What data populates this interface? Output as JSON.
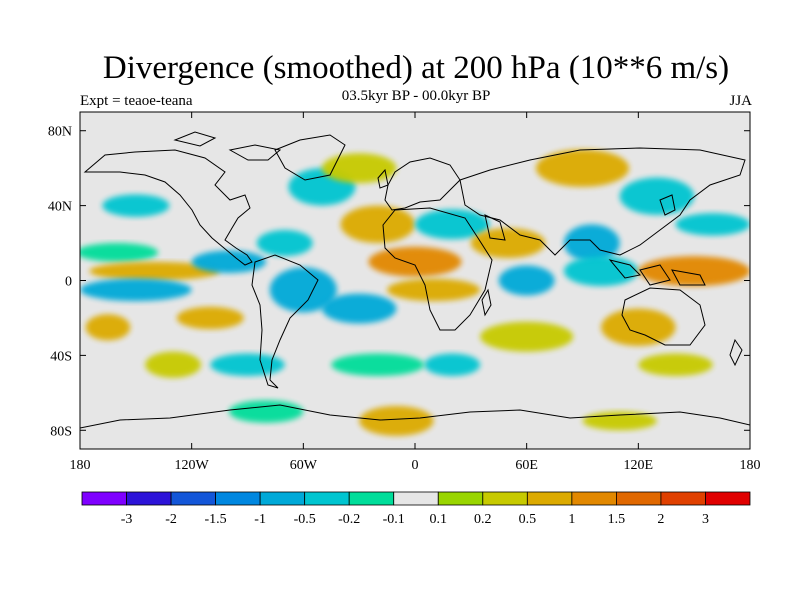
{
  "title": "Divergence (smoothed) at 200 hPa (10**6 m/s)",
  "subtitle": "03.5kyr BP - 00.0kyr BP",
  "experiment": "Expt = teaoe-teana",
  "season": "JJA",
  "map": {
    "lon_range": [
      -180,
      180
    ],
    "lat_range": [
      -90,
      90
    ],
    "lat_ticks": [
      {
        "value": 80,
        "label": "80N"
      },
      {
        "value": 40,
        "label": "40N"
      },
      {
        "value": 0,
        "label": "0"
      },
      {
        "value": -40,
        "label": "40S"
      },
      {
        "value": -80,
        "label": "80S"
      }
    ],
    "lon_ticks": [
      {
        "value": -180,
        "label": "180"
      },
      {
        "value": -120,
        "label": "120W"
      },
      {
        "value": -60,
        "label": "60W"
      },
      {
        "value": 0,
        "label": "0"
      },
      {
        "value": 60,
        "label": "60E"
      },
      {
        "value": 120,
        "label": "120E"
      },
      {
        "value": 180,
        "label": "180"
      }
    ],
    "background_color": "#e6e6e6",
    "fields": [
      {
        "lon": -150,
        "lat": 40,
        "rlon": 18,
        "rlat": 6,
        "level": -0.5
      },
      {
        "lon": -160,
        "lat": 15,
        "rlon": 22,
        "rlat": 5,
        "level": -0.2
      },
      {
        "lon": -140,
        "lat": 5,
        "rlon": 35,
        "rlat": 5,
        "level": 0.5
      },
      {
        "lon": -150,
        "lat": -5,
        "rlon": 30,
        "rlat": 6,
        "level": -1
      },
      {
        "lon": -100,
        "lat": 10,
        "rlon": 20,
        "rlat": 6,
        "level": -1
      },
      {
        "lon": -110,
        "lat": -20,
        "rlon": 18,
        "rlat": 6,
        "level": 0.5
      },
      {
        "lon": -165,
        "lat": -25,
        "rlon": 12,
        "rlat": 7,
        "level": 0.5
      },
      {
        "lon": -70,
        "lat": 20,
        "rlon": 15,
        "rlat": 7,
        "level": -0.5
      },
      {
        "lon": -60,
        "lat": -5,
        "rlon": 18,
        "rlat": 12,
        "level": -1
      },
      {
        "lon": -50,
        "lat": 50,
        "rlon": 18,
        "rlat": 10,
        "level": -0.5
      },
      {
        "lon": -30,
        "lat": 60,
        "rlon": 20,
        "rlat": 8,
        "level": 0.2
      },
      {
        "lon": -20,
        "lat": 30,
        "rlon": 20,
        "rlat": 10,
        "level": 0.5
      },
      {
        "lon": -30,
        "lat": -15,
        "rlon": 20,
        "rlat": 8,
        "level": -1
      },
      {
        "lon": 0,
        "lat": 10,
        "rlon": 25,
        "rlat": 8,
        "level": 1
      },
      {
        "lon": 10,
        "lat": -5,
        "rlon": 25,
        "rlat": 6,
        "level": 0.5
      },
      {
        "lon": 20,
        "lat": 30,
        "rlon": 20,
        "rlat": 8,
        "level": -0.5
      },
      {
        "lon": 50,
        "lat": 20,
        "rlon": 20,
        "rlat": 8,
        "level": 0.5
      },
      {
        "lon": 60,
        "lat": 0,
        "rlon": 15,
        "rlat": 8,
        "level": -1
      },
      {
        "lon": 95,
        "lat": 20,
        "rlon": 15,
        "rlat": 10,
        "level": -1
      },
      {
        "lon": 100,
        "lat": 5,
        "rlon": 20,
        "rlat": 8,
        "level": -0.5
      },
      {
        "lon": 90,
        "lat": 60,
        "rlon": 25,
        "rlat": 10,
        "level": 0.5
      },
      {
        "lon": 130,
        "lat": 45,
        "rlon": 20,
        "rlat": 10,
        "level": -0.5
      },
      {
        "lon": 150,
        "lat": 5,
        "rlon": 30,
        "rlat": 8,
        "level": 1
      },
      {
        "lon": 160,
        "lat": 30,
        "rlon": 20,
        "rlat": 6,
        "level": -0.5
      },
      {
        "lon": 120,
        "lat": -25,
        "rlon": 20,
        "rlat": 10,
        "level": 0.5
      },
      {
        "lon": 140,
        "lat": -45,
        "rlon": 20,
        "rlat": 6,
        "level": 0.2
      },
      {
        "lon": 60,
        "lat": -30,
        "rlon": 25,
        "rlat": 8,
        "level": 0.2
      },
      {
        "lon": 20,
        "lat": -45,
        "rlon": 15,
        "rlat": 6,
        "level": -0.5
      },
      {
        "lon": -20,
        "lat": -45,
        "rlon": 25,
        "rlat": 6,
        "level": -0.2
      },
      {
        "lon": -90,
        "lat": -45,
        "rlon": 20,
        "rlat": 6,
        "level": -0.5
      },
      {
        "lon": -130,
        "lat": -45,
        "rlon": 15,
        "rlat": 7,
        "level": 0.2
      },
      {
        "lon": -80,
        "lat": -70,
        "rlon": 20,
        "rlat": 6,
        "level": -0.2
      },
      {
        "lon": -10,
        "lat": -75,
        "rlon": 20,
        "rlat": 8,
        "level": 0.5
      },
      {
        "lon": 110,
        "lat": -75,
        "rlon": 20,
        "rlat": 5,
        "level": 0.2
      }
    ]
  },
  "colorbar": {
    "colors": [
      "#7f00ff",
      "#2c13d8",
      "#1356d8",
      "#0087e0",
      "#00a9d8",
      "#00c5d0",
      "#00dd9a",
      "#e6e6e6",
      "#99d500",
      "#c7ca00",
      "#dcaa00",
      "#e28800",
      "#e06800",
      "#e04000",
      "#e00000"
    ],
    "labels": [
      "-3",
      "-2",
      "-1.5",
      "-1",
      "-0.5",
      "-0.2",
      "-0.1",
      "0.1",
      "0.2",
      "0.5",
      "1",
      "1.5",
      "2",
      "3"
    ]
  }
}
